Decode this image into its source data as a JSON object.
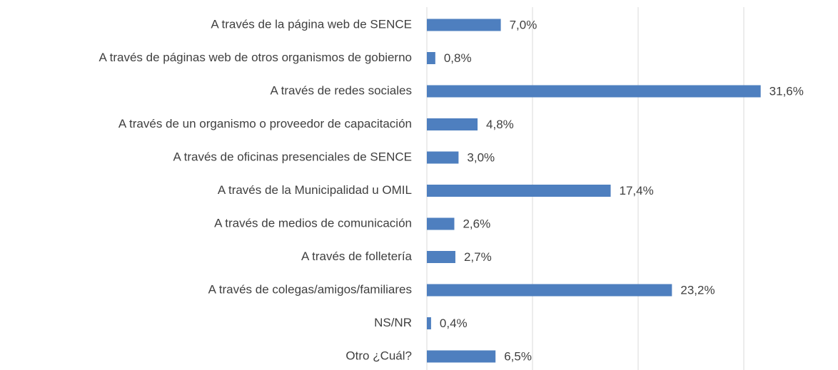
{
  "chart_data": {
    "type": "hbar",
    "categories": [
      "A través de la página web de SENCE",
      "A través de páginas web de otros organismos de gobierno",
      "A través de redes sociales",
      "A través de un organismo o proveedor de capacitación",
      "A través de oficinas presenciales de SENCE",
      "A través de la Municipalidad u OMIL",
      "A través de medios de comunicación",
      "A través de folletería",
      "A través de colegas/amigos/familiares",
      "NS/NR",
      "Otro ¿Cuál?"
    ],
    "values": [
      7.0,
      0.8,
      31.6,
      4.8,
      3.0,
      17.4,
      2.6,
      2.7,
      23.2,
      0.4,
      6.5
    ],
    "value_labels": [
      "7,0%",
      "0,8%",
      "31,6%",
      "4,8%",
      "3,0%",
      "17,4%",
      "2,6%",
      "2,7%",
      "23,2%",
      "0,4%",
      "6,5%"
    ],
    "color": "#4e7fbf",
    "xlim": [
      0,
      35
    ],
    "xticks": [
      0,
      10,
      20,
      30
    ],
    "grid": true
  }
}
